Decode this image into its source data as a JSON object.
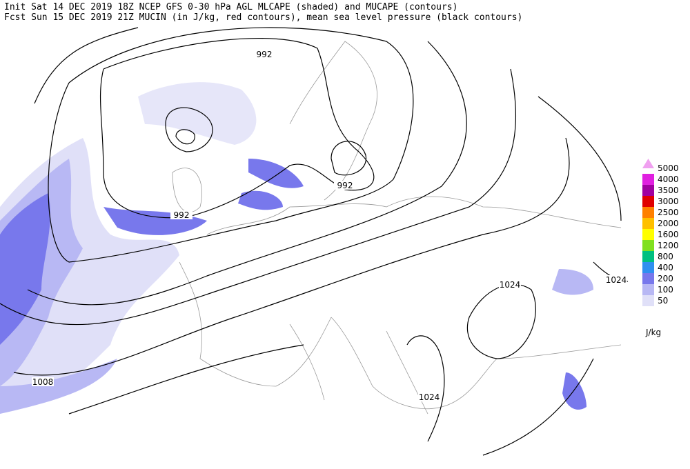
{
  "header": {
    "lines": [
      "Init  Sat 14 DEC 2019 18Z  NCEP GFS 0-30 hPa AGL MLCAPE (shaded) and MUCAPE (contours)",
      "Fcst Sun 15 DEC 2019 21Z  MUCIN (in J/kg, red contours), mean sea level pressure (black contours)"
    ]
  },
  "map": {
    "contour_labels": [
      "992",
      "992",
      "992",
      "1024",
      "1024",
      "1024",
      "1008"
    ]
  },
  "legend": {
    "unit": "J/kg",
    "levels": [
      {
        "label": "5000",
        "color": "#f0a0f0"
      },
      {
        "label": "4000",
        "color": "#e020e0"
      },
      {
        "label": "3500",
        "color": "#a000a0"
      },
      {
        "label": "3000",
        "color": "#e00000"
      },
      {
        "label": "2500",
        "color": "#ff8000"
      },
      {
        "label": "2000",
        "color": "#ffc000"
      },
      {
        "label": "1600",
        "color": "#ffff00"
      },
      {
        "label": "1200",
        "color": "#80e020"
      },
      {
        "label": "800",
        "color": "#00c080"
      },
      {
        "label": "400",
        "color": "#3090f0"
      },
      {
        "label": "200",
        "color": "#7878ec"
      },
      {
        "label": "100",
        "color": "#b8b8f4"
      },
      {
        "label": "50",
        "color": "#e0e0f8"
      }
    ]
  }
}
